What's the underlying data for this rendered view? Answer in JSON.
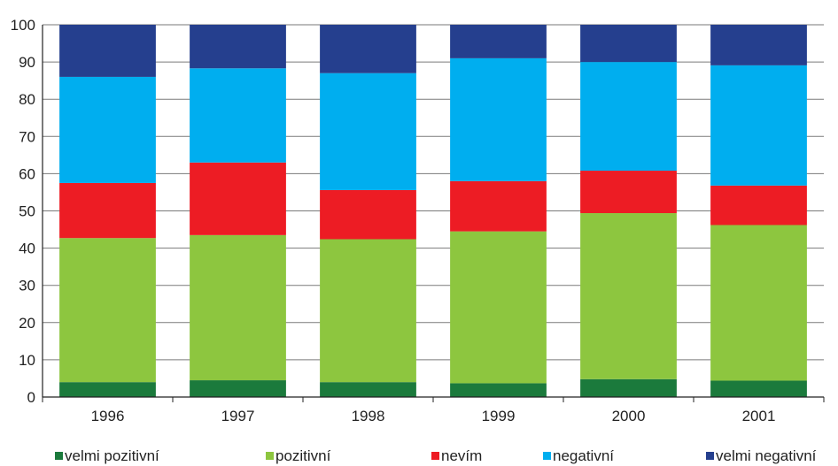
{
  "chart_data": {
    "type": "bar",
    "stacked": true,
    "categories": [
      "1996",
      "1997",
      "1998",
      "1999",
      "2000",
      "2001"
    ],
    "series": [
      {
        "name": "velmi pozitivní",
        "color": "#1b7a3c",
        "values": [
          4,
          4.5,
          4,
          3.7,
          4.8,
          4.4
        ]
      },
      {
        "name": "pozitivní",
        "color": "#8dc63f",
        "values": [
          38.7,
          39,
          38.4,
          40.8,
          44.6,
          41.8
        ]
      },
      {
        "name": "nevím",
        "color": "#ed1c24",
        "values": [
          14.8,
          19.5,
          13.2,
          13.5,
          11.4,
          10.6
        ]
      },
      {
        "name": "negativní",
        "color": "#00aeef",
        "values": [
          28.5,
          25.3,
          31.4,
          33,
          29.2,
          32.3
        ]
      },
      {
        "name": "velmi negativní",
        "color": "#253f8e",
        "values": [
          14,
          11.7,
          13,
          9,
          10,
          10.9
        ]
      }
    ],
    "ylim": [
      0,
      100
    ],
    "yticks": [
      0,
      10,
      20,
      30,
      40,
      50,
      60,
      70,
      80,
      90,
      100
    ],
    "grid": true,
    "legend_position": "bottom"
  }
}
